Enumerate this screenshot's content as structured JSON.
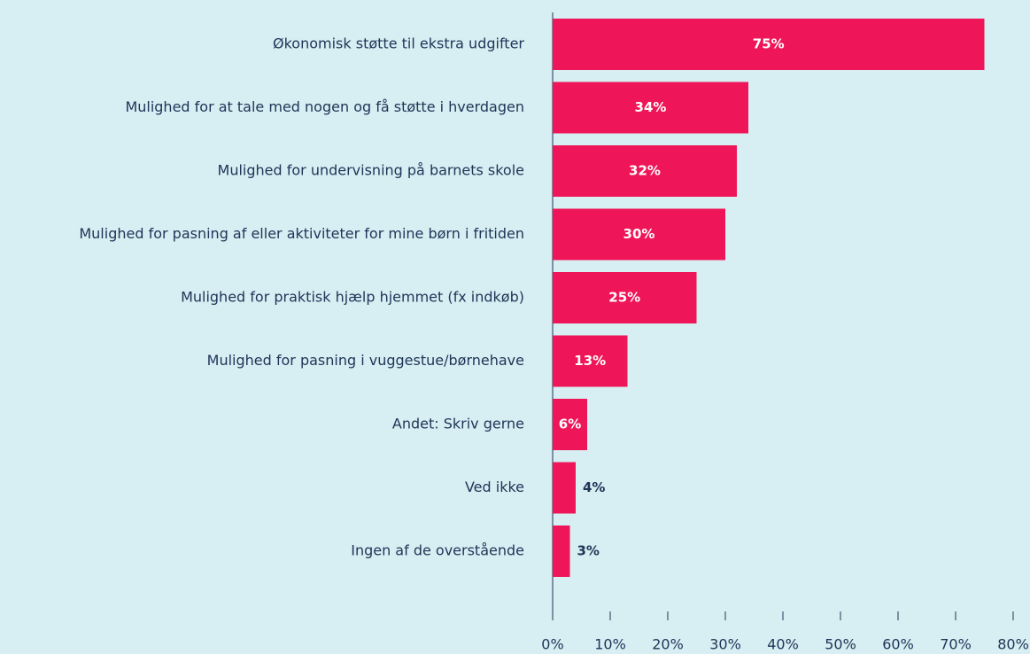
{
  "chart_data": {
    "type": "hbar",
    "categories": [
      "Økonomisk støtte til ekstra udgifter",
      "Mulighed for at tale med nogen og få støtte i hverdagen",
      "Mulighed for undervisning på barnets skole",
      "Mulighed for pasning af eller aktiviteter for mine børn i fritiden",
      "Mulighed for praktisk hjælp hjemmet (fx indkøb)",
      "Mulighed for pasning i vuggestue/børnehave",
      "Andet: Skriv gerne",
      "Ved ikke",
      "Ingen af de overstående"
    ],
    "values": [
      75,
      34,
      32,
      30,
      25,
      13,
      6,
      4,
      3
    ],
    "value_labels": [
      "75%",
      "34%",
      "32%",
      "30%",
      "25%",
      "13%",
      "6%",
      "4%",
      "3%"
    ],
    "color": "#ee1558",
    "xlim": [
      0,
      80
    ],
    "xticks": [
      {
        "value": 0,
        "label": "0%"
      },
      {
        "value": 10,
        "label": "10%"
      },
      {
        "value": 20,
        "label": "20%"
      },
      {
        "value": 30,
        "label": "30%"
      },
      {
        "value": 40,
        "label": "40%"
      },
      {
        "value": 50,
        "label": "50%"
      },
      {
        "value": 60,
        "label": "60%"
      },
      {
        "value": 70,
        "label": "70%"
      },
      {
        "value": 80,
        "label": "80%"
      }
    ]
  }
}
